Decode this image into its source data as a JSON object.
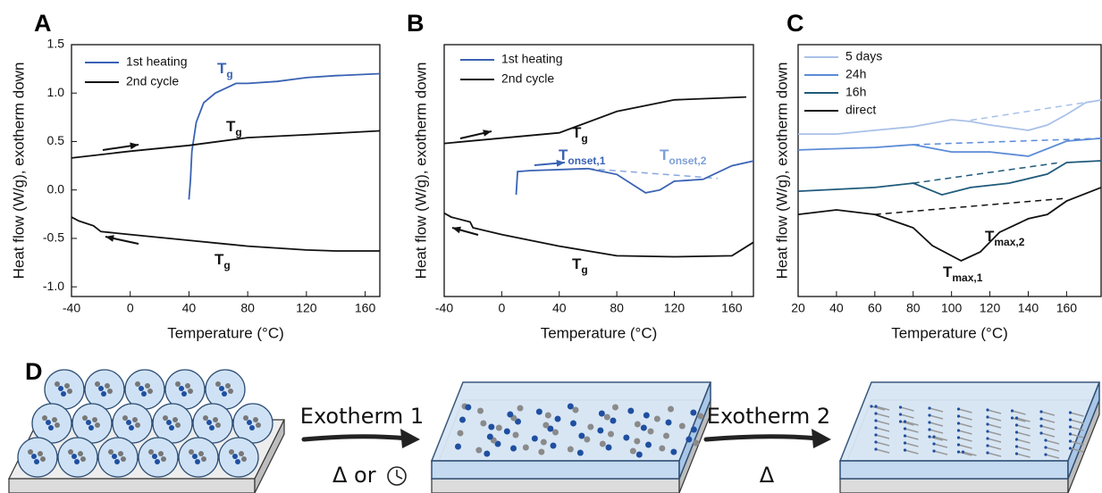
{
  "chart_data": [
    {
      "type": "line",
      "label": "A",
      "x_label": "Temperature (°C)",
      "y_label": "Heat flow (W/g), exotherm down",
      "xlim": [
        -40,
        170
      ],
      "xticks": [
        -40,
        0,
        40,
        80,
        120,
        160
      ],
      "ylim": [
        -1.1,
        1.5
      ],
      "yticks": [
        {
          "value": -1,
          "label": "-1.0"
        },
        -0.5,
        {
          "value": 0,
          "label": "0.0"
        },
        0.5,
        {
          "value": 1,
          "label": "1.0"
        },
        1.5
      ],
      "series": [
        {
          "name": "1st heating",
          "color": "#3a62b4",
          "x": [
            40,
            41,
            42,
            45,
            50,
            58,
            65,
            72,
            80,
            100,
            120,
            140,
            170
          ],
          "values": [
            -0.1,
            0.1,
            0.4,
            0.7,
            0.9,
            1.0,
            1.05,
            1.1,
            1.1,
            1.12,
            1.16,
            1.18,
            1.2
          ]
        },
        {
          "name": "2nd cycle",
          "color": "#111111",
          "x": [
            -40,
            0,
            40,
            70,
            80,
            120,
            170,
            null,
            170,
            140,
            120,
            80,
            40,
            0,
            -20,
            -25,
            -35,
            -40
          ],
          "values": [
            0.33,
            0.4,
            0.46,
            0.52,
            0.54,
            0.57,
            0.61,
            null,
            -0.63,
            -0.63,
            -0.62,
            -0.58,
            -0.52,
            -0.46,
            -0.43,
            -0.37,
            -0.32,
            -0.28
          ]
        }
      ],
      "annotations": [
        {
          "text": "T",
          "sub": "g",
          "color": "#3a62b4"
        },
        {
          "text": "T",
          "sub": "g",
          "color": "#111111"
        },
        {
          "text": "T",
          "sub": "g",
          "color": "#111111"
        }
      ]
    },
    {
      "type": "line",
      "label": "B",
      "x_label": "Temperature (°C)",
      "y_label": "Heat flow (W/g), exotherm down",
      "xlim": [
        -40,
        175
      ],
      "xticks": [
        -40,
        0,
        40,
        80,
        120,
        160
      ],
      "ylim": [
        -1.1,
        1.5
      ],
      "series": [
        {
          "name": "1st heating",
          "color": "#3a62b4",
          "x": [
            10,
            11,
            20,
            60,
            80,
            100,
            110,
            120,
            140,
            160,
            175
          ],
          "values": [
            -0.05,
            0.19,
            0.2,
            0.22,
            0.16,
            -0.03,
            0.0,
            0.09,
            0.11,
            0.25,
            0.3
          ]
        },
        {
          "name": "2nd cycle",
          "color": "#111111",
          "x": [
            -40,
            40,
            80,
            120,
            170,
            null,
            175,
            160,
            120,
            80,
            40,
            0,
            -20,
            -22,
            -35,
            -40
          ],
          "values": [
            0.48,
            0.59,
            0.81,
            0.93,
            0.96,
            null,
            -0.54,
            -0.68,
            -0.69,
            -0.68,
            -0.58,
            -0.46,
            -0.39,
            -0.33,
            -0.28,
            -0.24
          ]
        }
      ],
      "baselines": [
        {
          "x": [
            60,
            150
          ],
          "values": [
            0.22,
            0.12
          ],
          "color": "#8aa6dc"
        }
      ],
      "annotations": [
        {
          "text": "T",
          "sub": "g",
          "color": "#111111"
        },
        {
          "text": "T",
          "sub": "onset,1",
          "color": "#3a62b4"
        },
        {
          "text": "T",
          "sub": "onset,2",
          "color": "#7d9fd8"
        },
        {
          "text": "T",
          "sub": "g",
          "color": "#111111"
        }
      ]
    },
    {
      "type": "line",
      "label": "C",
      "x_label": "Temperature (°C)",
      "y_label": "Heat flow (W/g), exotherm down",
      "xlim": [
        20,
        178
      ],
      "xticks": [
        20,
        40,
        60,
        80,
        100,
        120,
        140,
        160
      ],
      "ylim": [
        0,
        10
      ],
      "series": [
        {
          "name": "5 days",
          "color": "#a9c1e8",
          "x": [
            20,
            40,
            60,
            80,
            100,
            110,
            120,
            140,
            150,
            160,
            170,
            178
          ],
          "values": [
            6.45,
            6.45,
            6.6,
            6.74,
            7.02,
            6.95,
            6.81,
            6.6,
            6.81,
            7.23,
            7.7,
            7.8
          ]
        },
        {
          "name": "24h",
          "color": "#5b8bd6",
          "x": [
            20,
            60,
            80,
            100,
            120,
            140,
            160,
            178
          ],
          "values": [
            5.82,
            5.92,
            6.03,
            5.74,
            5.74,
            5.57,
            6.17,
            6.28
          ]
        },
        {
          "name": "16h",
          "color": "#1f5a7a",
          "x": [
            20,
            60,
            80,
            95,
            110,
            130,
            150,
            160,
            178
          ],
          "values": [
            4.18,
            4.33,
            4.5,
            4.04,
            4.33,
            4.5,
            4.86,
            5.32,
            5.39
          ]
        },
        {
          "name": "direct",
          "color": "#111111",
          "x": [
            20,
            40,
            60,
            80,
            90,
            105,
            115,
            125,
            140,
            150,
            160,
            178
          ],
          "values": [
            3.26,
            3.44,
            3.26,
            2.73,
            2.02,
            1.42,
            1.77,
            2.55,
            3.09,
            3.26,
            3.79,
            4.33
          ]
        }
      ],
      "baselines": [
        {
          "x": [
            110,
            178
          ],
          "values": [
            7.0,
            7.8
          ],
          "color": "#a9c1e8"
        },
        {
          "x": [
            80,
            178
          ],
          "values": [
            6.03,
            6.28
          ],
          "color": "#5b8bd6"
        },
        {
          "x": [
            80,
            155
          ],
          "values": [
            4.5,
            5.3
          ],
          "color": "#1f5a7a"
        },
        {
          "x": [
            60,
            160
          ],
          "values": [
            3.26,
            3.9
          ],
          "color": "#111111"
        }
      ],
      "annotations": [
        {
          "text": "T",
          "sub": "max,2",
          "color": "#111111"
        },
        {
          "text": "T",
          "sub": "max,1",
          "color": "#111111"
        }
      ]
    }
  ],
  "diagram": {
    "label": "D",
    "steps": [
      {
        "text": "Exotherm 1",
        "condition": "Δ or"
      },
      {
        "text": "Exotherm 2",
        "condition": "Δ"
      }
    ]
  }
}
